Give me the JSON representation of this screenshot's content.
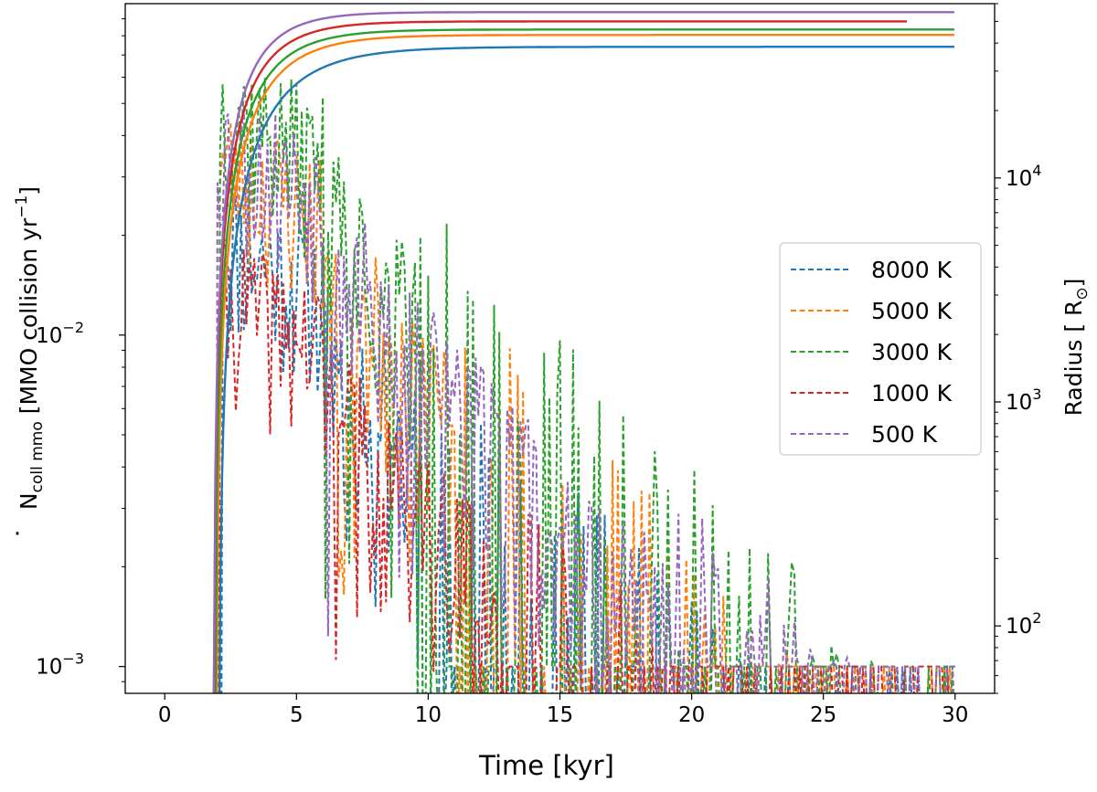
{
  "chart_data": {
    "type": "line",
    "xlabel": "Time [kyr]",
    "ylabel_left_parts": {
      "base": "N",
      "sub": "coll mmo",
      "rest": " [MMO collision  yr",
      "sup": "−1",
      "close": "]"
    },
    "ylabel_right_parts": {
      "base": "Radius [ R",
      "sub": "⊙",
      "close": "]"
    },
    "xlim": [
      -1.5,
      31.5
    ],
    "ylim_left": [
      0.00083,
      0.1
    ],
    "ylim_right": [
      50,
      60000
    ],
    "x_ticks": [
      0,
      5,
      10,
      15,
      20,
      25,
      30
    ],
    "x_tick_labels": [
      "0",
      "5",
      "10",
      "15",
      "20",
      "25",
      "30"
    ],
    "y_left_ticks": [
      {
        "value": 0.001,
        "label": "10",
        "exp": "−3"
      },
      {
        "value": 0.01,
        "label": "10",
        "exp": "−2"
      }
    ],
    "y_right_ticks": [
      {
        "value": 100,
        "label": "10",
        "exp": "2"
      },
      {
        "value": 1000,
        "label": "10",
        "exp": "3"
      },
      {
        "value": 10000,
        "label": "10",
        "exp": "4"
      }
    ],
    "legend_location": "center-right",
    "series": [
      {
        "name": "8000 K",
        "color": "#1f77b4",
        "style": "dashed",
        "axis": "left",
        "seed": 11,
        "start": 2.2,
        "peak": 0.018,
        "floor_from": 9.5,
        "sparsity": 0.55
      },
      {
        "name": "5000 K",
        "color": "#ff7f0e",
        "style": "dashed",
        "axis": "left",
        "seed": 23,
        "start": 2.0,
        "peak": 0.03,
        "floor_from": 11.0,
        "sparsity": 0.5
      },
      {
        "name": "3000 K",
        "color": "#2ca02c",
        "style": "dashed",
        "axis": "left",
        "seed": 37,
        "start": 2.1,
        "peak": 0.045,
        "floor_from": 9.5,
        "sparsity": 0.45
      },
      {
        "name": "1000 K",
        "color": "#d62728",
        "style": "dashed",
        "axis": "left",
        "seed": 41,
        "start": 2.1,
        "peak": 0.012,
        "floor_from": 13.0,
        "sparsity": 0.45
      },
      {
        "name": "500 K",
        "color": "#9467bd",
        "style": "dashed",
        "axis": "left",
        "seed": 53,
        "start": 2.0,
        "peak": 0.035,
        "floor_from": 20.0,
        "sparsity": 0.3
      }
    ],
    "radius_series": [
      {
        "name": "8000 K",
        "color": "#1f77b4",
        "axis": "right",
        "t0": 2.05,
        "tau": 1.9,
        "rmax": 38500,
        "end": 30.0
      },
      {
        "name": "5000 K",
        "color": "#ff7f0e",
        "axis": "right",
        "t0": 1.95,
        "tau": 1.6,
        "rmax": 43500,
        "end": 30.0
      },
      {
        "name": "3000 K",
        "color": "#2ca02c",
        "axis": "right",
        "t0": 1.9,
        "tau": 1.5,
        "rmax": 46000,
        "end": 30.0
      },
      {
        "name": "1000 K",
        "color": "#d62728",
        "axis": "right",
        "t0": 1.85,
        "tau": 1.4,
        "rmax": 50000,
        "end": 28.2
      },
      {
        "name": "500 K",
        "color": "#9467bd",
        "axis": "right",
        "t0": 1.85,
        "tau": 1.3,
        "rmax": 55000,
        "end": 30.0
      }
    ]
  }
}
